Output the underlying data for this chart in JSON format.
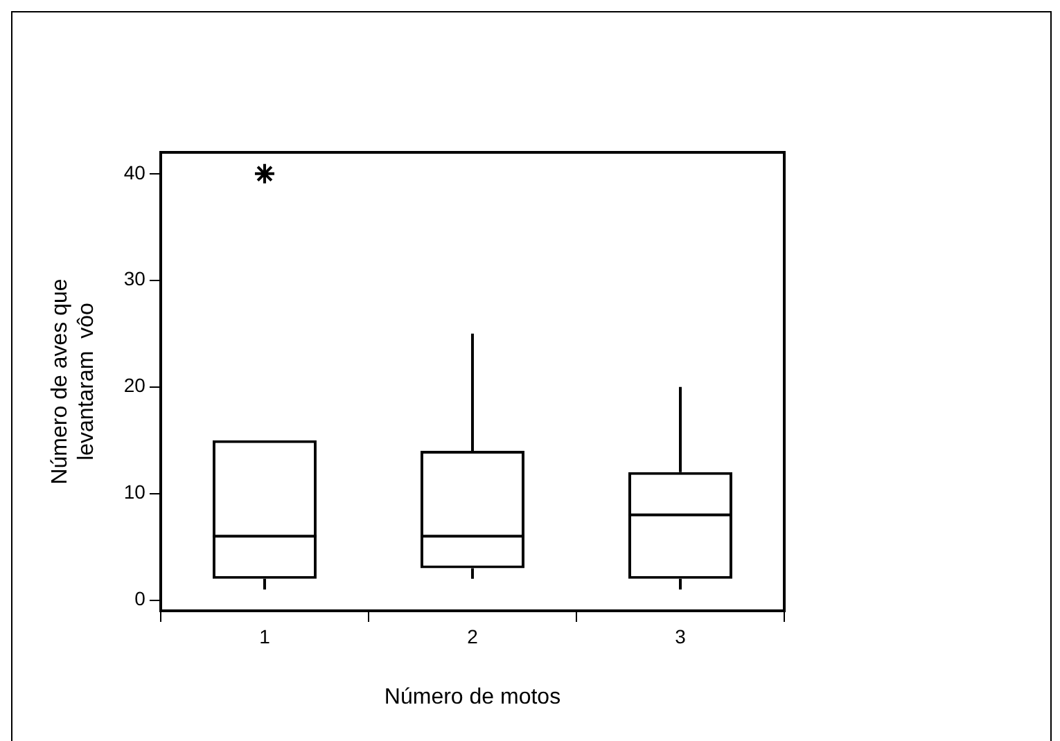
{
  "chart_data": {
    "type": "box",
    "xlabel": "Número de motos",
    "ylabel": "Número de aves que\nlevantaram  vôo",
    "categories": [
      "1",
      "2",
      "3"
    ],
    "boxes": [
      {
        "low": 1,
        "q1": 2,
        "median": 6,
        "q3": 15,
        "high": 15,
        "outliers": [
          40
        ]
      },
      {
        "low": 2,
        "q1": 3,
        "median": 6,
        "q3": 14,
        "high": 25
      },
      {
        "low": 1,
        "q1": 2,
        "median": 8,
        "q3": 12,
        "high": 20
      }
    ],
    "color": "#000000",
    "ylim": [
      -1,
      42
    ],
    "yticks": [
      0,
      10,
      20,
      30,
      40
    ],
    "grid": false,
    "legend": false
  }
}
